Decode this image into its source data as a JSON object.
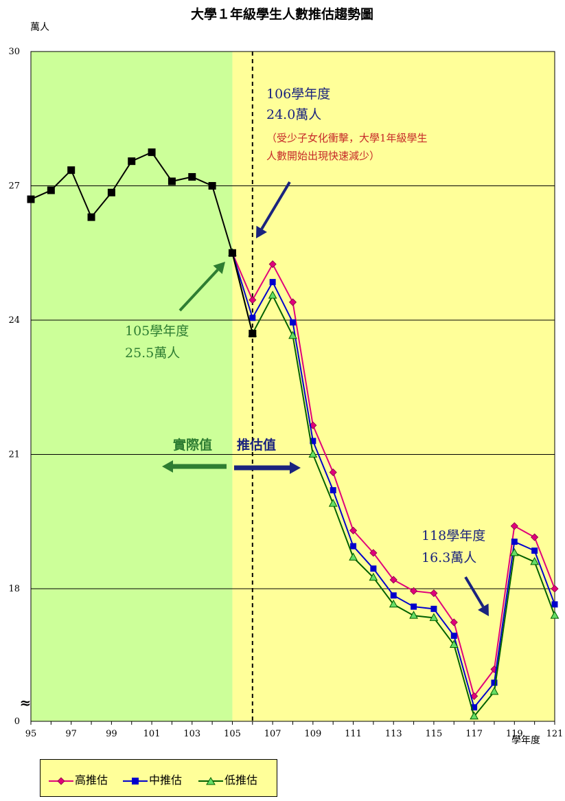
{
  "chart_data": {
    "type": "line",
    "title": "大學１年級學生人數推估趨勢圖",
    "ylabel": "萬人",
    "xlabel": "學年度",
    "ylim": [
      0,
      30
    ],
    "y_ticks": [
      "30",
      "27",
      "24",
      "21",
      "18",
      "0"
    ],
    "y_break_symbol": "≈",
    "x_ticks": [
      "95",
      "97",
      "99",
      "101",
      "103",
      "105",
      "107",
      "109",
      "111",
      "113",
      "115",
      "117",
      "119",
      "121"
    ],
    "grid": "horizontal",
    "legend_position": "bottom-left",
    "regions": {
      "actual_color": "#ccff99",
      "forecast_color": "#ffff99"
    },
    "series": [
      {
        "name": "actual",
        "color": "#000000",
        "marker": "square",
        "x": [
          95,
          96,
          97,
          98,
          99,
          100,
          101,
          102,
          103,
          104,
          105,
          106
        ],
        "values": [
          26.7,
          26.9,
          27.35,
          26.3,
          26.85,
          27.55,
          27.75,
          27.1,
          27.2,
          27.0,
          25.5,
          23.7
        ]
      },
      {
        "name": "高推估",
        "color": "#e0007a",
        "marker": "diamond",
        "x": [
          105,
          106,
          107,
          108,
          109,
          110,
          111,
          112,
          113,
          114,
          115,
          116,
          117,
          118,
          119,
          120,
          121
        ],
        "values": [
          25.5,
          24.45,
          25.25,
          24.4,
          21.65,
          20.6,
          19.3,
          18.8,
          18.2,
          17.95,
          17.9,
          17.25,
          15.6,
          16.2,
          19.4,
          19.15,
          18.0
        ]
      },
      {
        "name": "中推估",
        "color": "#0000cc",
        "marker": "square",
        "x": [
          105,
          106,
          107,
          108,
          109,
          110,
          111,
          112,
          113,
          114,
          115,
          116,
          117,
          118,
          119,
          120,
          121
        ],
        "values": [
          25.5,
          24.05,
          24.85,
          23.95,
          21.3,
          20.2,
          18.95,
          18.45,
          17.85,
          17.6,
          17.55,
          16.95,
          15.35,
          15.9,
          19.05,
          18.85,
          17.65
        ]
      },
      {
        "name": "低推估",
        "color": "#00a000",
        "marker": "triangle",
        "x": [
          105,
          106,
          107,
          108,
          109,
          110,
          111,
          112,
          113,
          114,
          115,
          116,
          117,
          118,
          119,
          120,
          121
        ],
        "values": [
          25.5,
          23.7,
          24.55,
          23.65,
          21.0,
          19.9,
          18.7,
          18.25,
          17.65,
          17.4,
          17.35,
          16.75,
          15.15,
          15.7,
          18.8,
          18.6,
          17.4
        ]
      }
    ],
    "annotations": {
      "a106_year": "106學年度",
      "a106_value": "24.0萬人",
      "a106_note1": "（受少子女化衝擊，大學1年級學生",
      "a106_note2": "人數開始出現快速減少）",
      "a105_year": "105學年度",
      "a105_value": "25.5萬人",
      "actual_label": "實際值",
      "forecast_label": "推估值",
      "a118_year": "118學年度",
      "a118_value": "16.3萬人"
    }
  },
  "legend": {
    "high": "高推估",
    "mid": "中推估",
    "low": "低推估"
  }
}
